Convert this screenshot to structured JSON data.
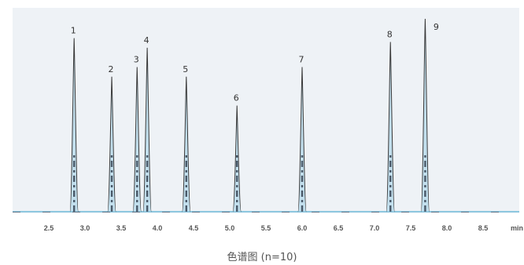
{
  "chart_data": {
    "type": "line",
    "title": "",
    "caption": "色谱图 (n=10)",
    "xlabel": "min",
    "ylabel": "",
    "xlim": [
      2.0,
      9.0
    ],
    "x_ticks": [
      2.5,
      3.0,
      3.5,
      4.0,
      4.5,
      5.0,
      5.5,
      6.0,
      6.5,
      7.0,
      7.5,
      8.0,
      8.5
    ],
    "x_tick_labels": [
      "2.5",
      "3.0",
      "3.5",
      "4.0",
      "4.5",
      "5.0",
      "5.5",
      "6.0",
      "6.5",
      "7.0",
      "7.5",
      "8.0",
      "8.5"
    ],
    "grid": false,
    "peaks": [
      {
        "label": "1",
        "x": 2.85,
        "height": 0.9
      },
      {
        "label": "2",
        "x": 3.37,
        "height": 0.7
      },
      {
        "label": "3",
        "x": 3.72,
        "height": 0.75
      },
      {
        "label": "4",
        "x": 3.86,
        "height": 0.85
      },
      {
        "label": "5",
        "x": 4.4,
        "height": 0.7
      },
      {
        "label": "6",
        "x": 5.1,
        "height": 0.55
      },
      {
        "label": "7",
        "x": 6.0,
        "height": 0.75
      },
      {
        "label": "8",
        "x": 7.22,
        "height": 0.88
      },
      {
        "label": "9",
        "x": 7.7,
        "height": 1.0
      }
    ],
    "colors": {
      "background": "#eef2f6",
      "trace": "#3a3a3a",
      "trace_light": "#9fd0e6",
      "baseline": "#8ec8e0"
    }
  }
}
